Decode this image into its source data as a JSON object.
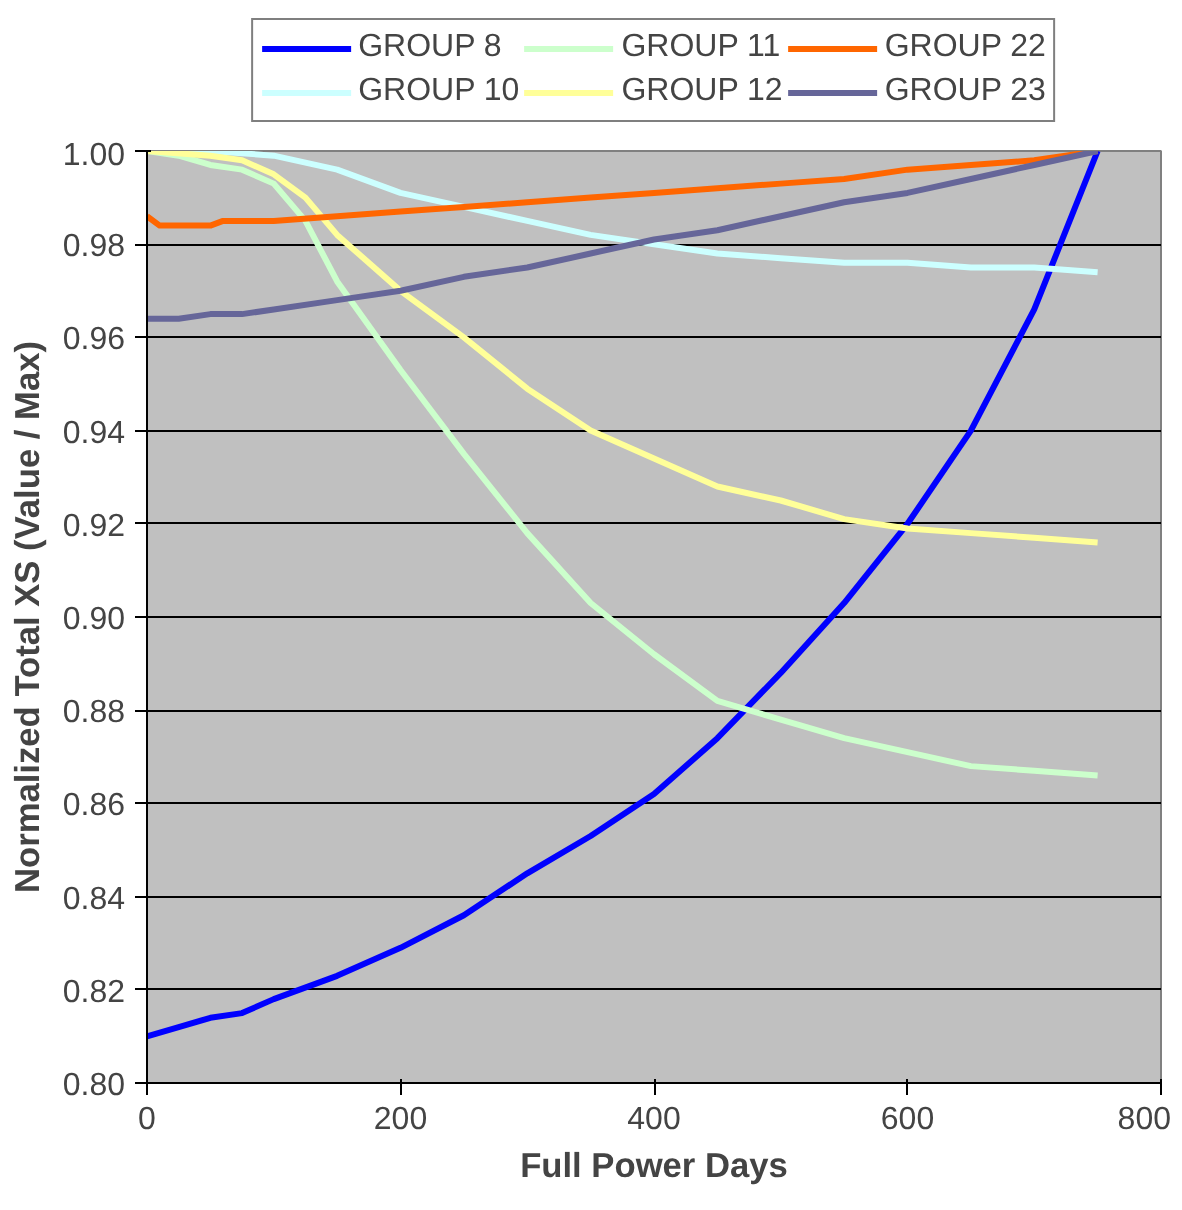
{
  "chart_data": {
    "type": "line",
    "xlabel": "Full Power Days",
    "ylabel": "Normalized Total XS (Value / Max)",
    "xlim": [
      0,
      800
    ],
    "xticks": [
      0,
      200,
      400,
      600,
      800
    ],
    "ylim": [
      0.8,
      1.0
    ],
    "yticks": [
      {
        "value": 0.8,
        "label": "0.80"
      },
      {
        "value": 0.82,
        "label": "0.82"
      },
      {
        "value": 0.84,
        "label": "0.84"
      },
      {
        "value": 0.86,
        "label": "0.86"
      },
      {
        "value": 0.88,
        "label": "0.88"
      },
      {
        "value": 0.9,
        "label": "0.90"
      },
      {
        "value": 0.92,
        "label": "0.92"
      },
      {
        "value": 0.94,
        "label": "0.94"
      },
      {
        "value": 0.96,
        "label": "0.96"
      },
      {
        "value": 0.98,
        "label": "0.98"
      },
      {
        "value": 1.0,
        "label": "1.00"
      }
    ],
    "grid": "y",
    "legend": "top",
    "marker": "none",
    "line_style": "solid",
    "series": [
      {
        "name": "GROUP 8",
        "color": "#0000ff",
        "x": [
          0,
          25,
          50,
          75,
          100,
          150,
          200,
          250,
          300,
          350,
          400,
          450,
          500,
          550,
          600,
          650,
          700,
          750
        ],
        "values": [
          0.81,
          0.812,
          0.814,
          0.815,
          0.818,
          0.823,
          0.829,
          0.836,
          0.845,
          0.853,
          0.862,
          0.874,
          0.888,
          0.903,
          0.92,
          0.94,
          0.966,
          1.0
        ]
      },
      {
        "name": "GROUP 10",
        "color": "#ccffff",
        "x": [
          0,
          50,
          100,
          150,
          200,
          250,
          300,
          350,
          400,
          450,
          500,
          550,
          600,
          650,
          700,
          750
        ],
        "values": [
          1.0,
          1.0,
          0.999,
          0.996,
          0.991,
          0.988,
          0.985,
          0.982,
          0.98,
          0.978,
          0.977,
          0.976,
          0.976,
          0.975,
          0.975,
          0.974
        ]
      },
      {
        "name": "GROUP 11",
        "color": "#ccffcc",
        "x": [
          0,
          25,
          50,
          75,
          100,
          125,
          150,
          200,
          250,
          300,
          350,
          400,
          450,
          500,
          550,
          600,
          650,
          700,
          750
        ],
        "values": [
          1.0,
          0.999,
          0.997,
          0.996,
          0.993,
          0.985,
          0.972,
          0.953,
          0.935,
          0.918,
          0.903,
          0.892,
          0.882,
          0.878,
          0.874,
          0.871,
          0.868,
          0.867,
          0.866
        ]
      },
      {
        "name": "GROUP 12",
        "color": "#ffff99",
        "x": [
          0,
          50,
          75,
          100,
          125,
          150,
          200,
          250,
          300,
          350,
          400,
          450,
          500,
          550,
          600,
          650,
          700,
          750
        ],
        "values": [
          1.0,
          0.999,
          0.998,
          0.995,
          0.99,
          0.982,
          0.97,
          0.96,
          0.949,
          0.94,
          0.934,
          0.928,
          0.925,
          0.921,
          0.919,
          0.918,
          0.917,
          0.916
        ]
      },
      {
        "name": "GROUP 22",
        "color": "#ff6600",
        "x": [
          0,
          10,
          50,
          60,
          100,
          150,
          200,
          250,
          300,
          350,
          400,
          450,
          500,
          550,
          600,
          650,
          700,
          750
        ],
        "values": [
          0.986,
          0.984,
          0.984,
          0.985,
          0.985,
          0.986,
          0.987,
          0.988,
          0.989,
          0.99,
          0.991,
          0.992,
          0.993,
          0.994,
          0.996,
          0.997,
          0.998,
          1.0
        ]
      },
      {
        "name": "GROUP 23",
        "color": "#666699",
        "x": [
          0,
          25,
          50,
          75,
          100,
          150,
          200,
          250,
          300,
          350,
          400,
          450,
          500,
          550,
          600,
          650,
          700,
          750
        ],
        "values": [
          0.964,
          0.964,
          0.965,
          0.965,
          0.966,
          0.968,
          0.97,
          0.973,
          0.975,
          0.978,
          0.981,
          0.983,
          0.986,
          0.989,
          0.991,
          0.994,
          0.997,
          1.0
        ]
      }
    ]
  }
}
